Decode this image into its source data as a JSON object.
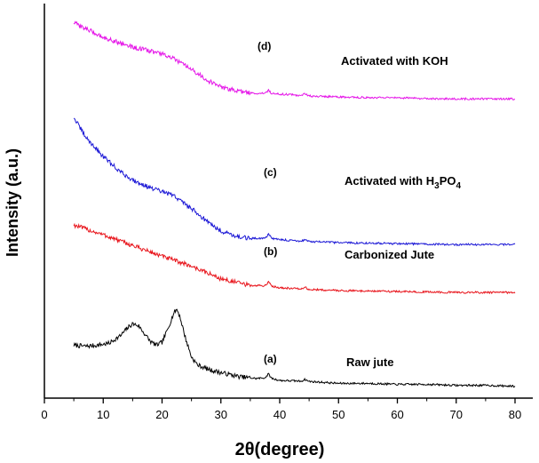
{
  "chart_data": {
    "type": "line",
    "title": "",
    "xlabel": "2θ(degree)",
    "ylabel": "Intensity (a.u.)",
    "xlim": [
      0,
      80
    ],
    "xticks": [
      0,
      10,
      20,
      30,
      40,
      50,
      60,
      70,
      80
    ],
    "yticks_shown": false,
    "grid": false,
    "legend": "inline labels beside each curve",
    "colors": {
      "raw": "#000000",
      "carbonized": "#e8141b",
      "h3po4": "#1c18d6",
      "koh": "#e515e8",
      "axis": "#000000"
    },
    "series": [
      {
        "id": "raw",
        "tag": "(a)",
        "name": "Raw jute",
        "x": [
          5,
          7,
          9,
          11,
          13,
          14,
          15,
          16,
          17,
          18,
          19,
          20,
          21,
          22,
          22.5,
          23,
          24,
          25,
          26,
          28,
          30,
          33,
          36,
          38,
          40,
          45,
          50,
          55,
          60,
          65,
          70,
          75,
          80
        ],
        "y": [
          0.45,
          0.44,
          0.45,
          0.47,
          0.55,
          0.62,
          0.67,
          0.65,
          0.57,
          0.49,
          0.45,
          0.48,
          0.62,
          0.78,
          0.82,
          0.75,
          0.52,
          0.33,
          0.25,
          0.2,
          0.17,
          0.13,
          0.11,
          0.12,
          0.09,
          0.08,
          0.06,
          0.06,
          0.05,
          0.05,
          0.04,
          0.04,
          0.03
        ]
      },
      {
        "id": "carbonized",
        "tag": "(b)",
        "name": "Carbonized Jute",
        "x": [
          5,
          10,
          15,
          20,
          25,
          30,
          35,
          38,
          40,
          45,
          50,
          60,
          70,
          80
        ],
        "y": [
          1.68,
          1.58,
          1.47,
          1.36,
          1.26,
          1.13,
          1.06,
          1.06,
          1.04,
          1.02,
          1.01,
          1.0,
          0.99,
          0.99
        ]
      },
      {
        "id": "h3po4",
        "tag": "(c)",
        "name": "Activated with H3PO4",
        "x": [
          5,
          7,
          10,
          13,
          15,
          18,
          20,
          22,
          25,
          28,
          30,
          33,
          35,
          38,
          40,
          45,
          50,
          60,
          70,
          80
        ],
        "y": [
          2.78,
          2.58,
          2.38,
          2.22,
          2.14,
          2.06,
          2.02,
          1.98,
          1.85,
          1.7,
          1.62,
          1.56,
          1.54,
          1.55,
          1.53,
          1.51,
          1.5,
          1.49,
          1.48,
          1.48
        ]
      },
      {
        "id": "koh",
        "tag": "(d)",
        "name": "Activated with KOH",
        "x": [
          5,
          8,
          10,
          13,
          15,
          18,
          20,
          22,
          25,
          28,
          30,
          33,
          35,
          40,
          45,
          50,
          60,
          70,
          80
        ],
        "y": [
          3.75,
          3.66,
          3.6,
          3.54,
          3.5,
          3.46,
          3.43,
          3.38,
          3.27,
          3.15,
          3.09,
          3.05,
          3.03,
          3.02,
          3.0,
          2.99,
          2.98,
          2.97,
          2.97
        ]
      }
    ]
  }
}
